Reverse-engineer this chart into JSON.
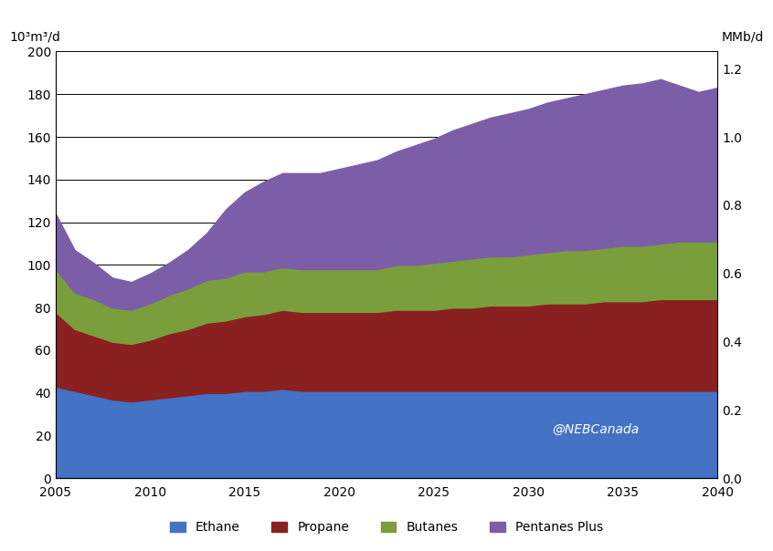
{
  "years": [
    2005,
    2006,
    2007,
    2008,
    2009,
    2010,
    2011,
    2012,
    2013,
    2014,
    2015,
    2016,
    2017,
    2018,
    2019,
    2020,
    2021,
    2022,
    2023,
    2024,
    2025,
    2026,
    2027,
    2028,
    2029,
    2030,
    2031,
    2032,
    2033,
    2034,
    2035,
    2036,
    2037,
    2038,
    2039,
    2040
  ],
  "ethane": [
    43,
    41,
    39,
    37,
    36,
    37,
    38,
    39,
    40,
    40,
    41,
    41,
    42,
    41,
    41,
    41,
    41,
    41,
    41,
    41,
    41,
    41,
    41,
    41,
    41,
    41,
    41,
    41,
    41,
    41,
    41,
    41,
    41,
    41,
    41,
    41
  ],
  "propane": [
    35,
    29,
    28,
    27,
    27,
    28,
    30,
    31,
    33,
    34,
    35,
    36,
    37,
    37,
    37,
    37,
    37,
    37,
    38,
    38,
    38,
    39,
    39,
    40,
    40,
    40,
    41,
    41,
    41,
    42,
    42,
    42,
    43,
    43,
    43,
    43
  ],
  "butanes": [
    20,
    17,
    17,
    16,
    16,
    17,
    18,
    19,
    20,
    20,
    21,
    20,
    20,
    20,
    20,
    20,
    20,
    20,
    21,
    21,
    22,
    22,
    23,
    23,
    23,
    24,
    24,
    25,
    25,
    25,
    26,
    26,
    26,
    27,
    27,
    27
  ],
  "pentanes_plus": [
    26,
    20,
    17,
    14,
    13,
    14,
    15,
    18,
    22,
    32,
    37,
    42,
    44,
    45,
    45,
    47,
    49,
    51,
    53,
    56,
    58,
    61,
    63,
    65,
    67,
    68,
    70,
    71,
    73,
    74,
    75,
    76,
    77,
    73,
    70,
    72
  ],
  "colors": {
    "ethane": "#4472c4",
    "propane": "#8b2020",
    "butanes": "#7a9e3b",
    "pentanes_plus": "#7b5ea7"
  },
  "ylabel_left": "10³m³/d",
  "ylabel_right": "MMb/d",
  "ylim_left": [
    0,
    200
  ],
  "ylim_right": [
    0,
    1.25
  ],
  "xlim": [
    2005,
    2040
  ],
  "xticks": [
    2005,
    2010,
    2015,
    2020,
    2025,
    2030,
    2035,
    2040
  ],
  "yticks_left": [
    0,
    20,
    40,
    60,
    80,
    100,
    120,
    140,
    160,
    180,
    200
  ],
  "yticks_right": [
    0,
    0.2,
    0.4,
    0.6,
    0.8,
    1.0,
    1.2
  ],
  "legend_labels": [
    "Ethane",
    "Propane",
    "Butanes",
    "Pentanes Plus"
  ],
  "background_color": "#ffffff",
  "figsize": [
    8.46,
    6.04
  ],
  "dpi": 100
}
